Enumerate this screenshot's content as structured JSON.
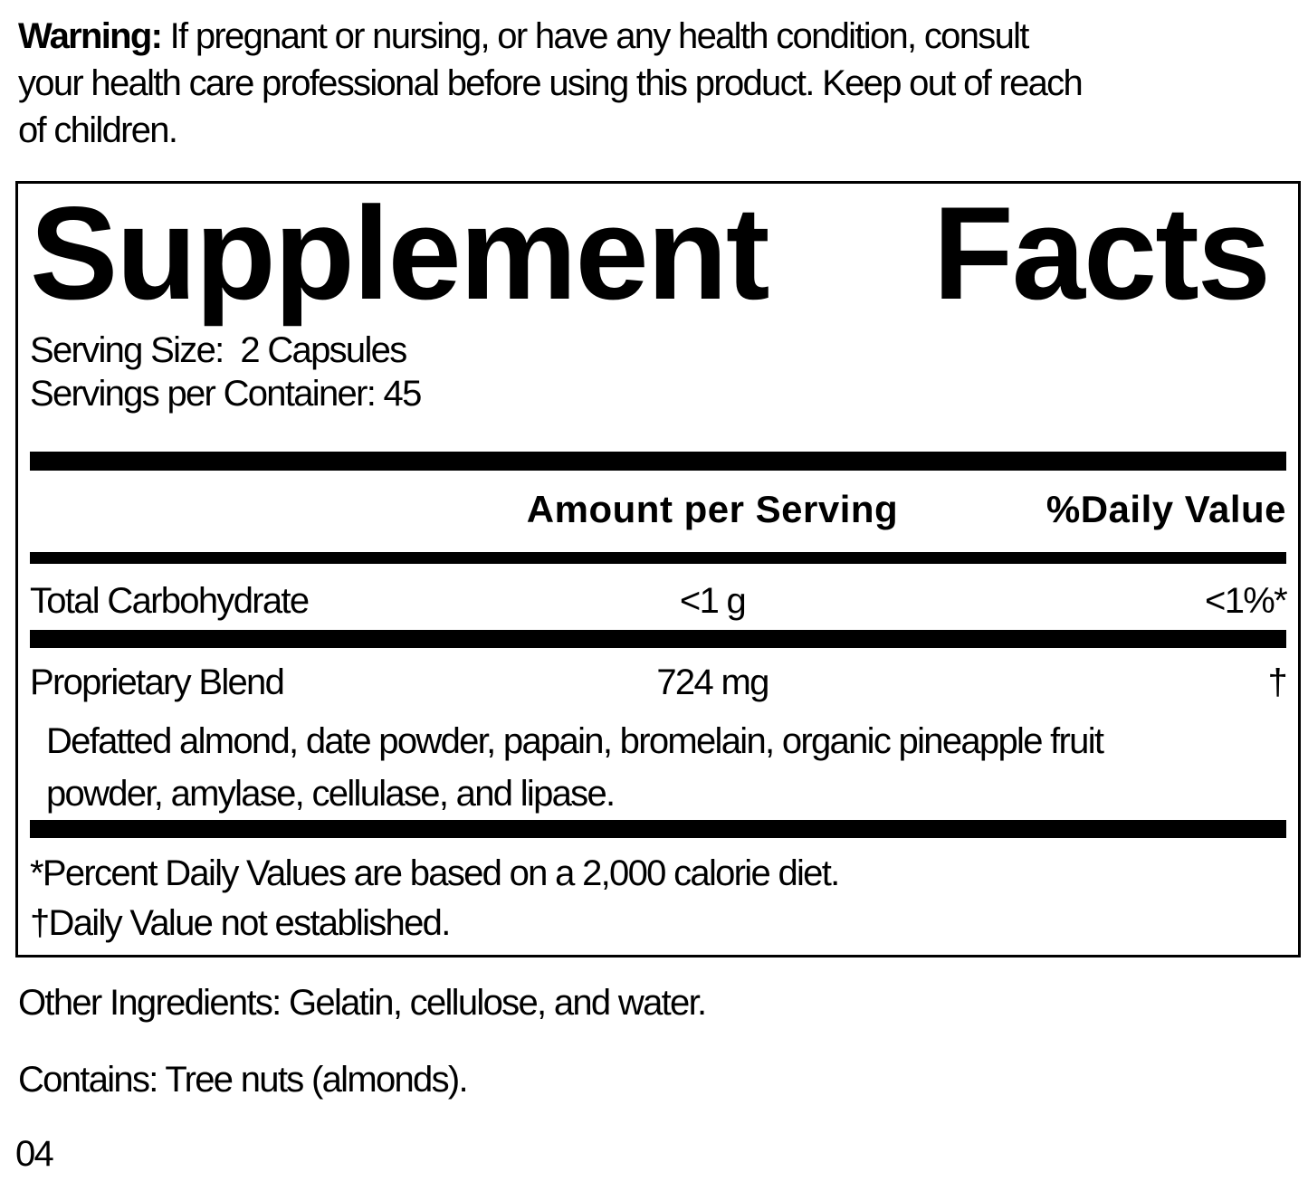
{
  "warning": {
    "label": "Warning:",
    "line1_rest": " If pregnant or nursing, or have any health condition, consult",
    "line2": "your health care professional before using this product. Keep out of reach",
    "line3": "of children."
  },
  "panel": {
    "title_word1": "Supplement",
    "title_word2": "Facts",
    "serving_size_line": "Serving Size:  2 Capsules",
    "servings_per_container_line": "Servings per Container: 45",
    "header": {
      "amount": "Amount per Serving",
      "daily_value": "%Daily Value"
    },
    "rows": [
      {
        "name": "Total Carbohydrate",
        "amount": "<1 g",
        "dv": "<1%*"
      },
      {
        "name": "Proprietary Blend",
        "amount": "724 mg",
        "dv": "†"
      }
    ],
    "blend_description_line1": "Defatted almond, date powder, papain, bromelain, organic pineapple fruit",
    "blend_description_line2": "powder, amylase, cellulase, and lipase.",
    "footnote1": "*Percent Daily Values are based on a 2,000 calorie diet.",
    "footnote2": "†Daily Value not established."
  },
  "other_ingredients": "Other Ingredients: Gelatin, cellulose, and water.",
  "contains": "Contains: Tree nuts (almonds).",
  "footer_code": "04",
  "colors": {
    "text": "#000000",
    "background": "#ffffff",
    "rule": "#000000"
  }
}
